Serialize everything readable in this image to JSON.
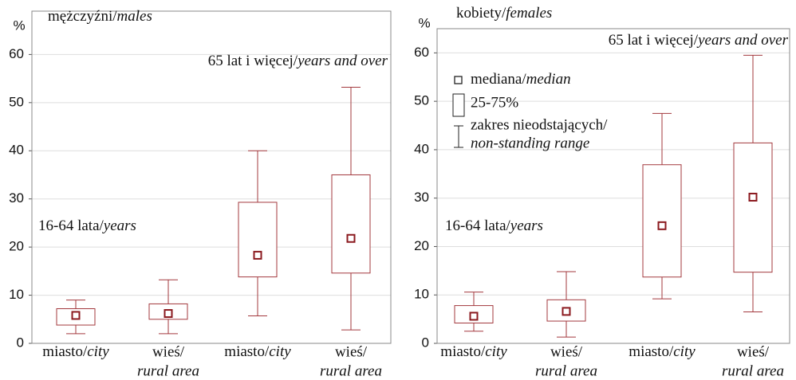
{
  "chart_data": [
    {
      "type": "box",
      "title": [
        "mężczyźni/",
        "males"
      ],
      "ylabel": "%",
      "categories": [
        [
          "miasto/",
          "city"
        ],
        [
          "wieś/",
          "rural area"
        ],
        [
          "miasto/",
          "city"
        ],
        [
          "wieś/",
          "rural area"
        ]
      ],
      "stats": [
        {
          "low": 2,
          "q1": 3.8,
          "median": 5.8,
          "q3": 7.2,
          "high": 9
        },
        {
          "low": 2,
          "q1": 5,
          "median": 6.2,
          "q3": 8.2,
          "high": 13.2
        },
        {
          "low": 5.7,
          "q1": 13.8,
          "median": 18.3,
          "q3": 29.3,
          "high": 40
        },
        {
          "low": 2.8,
          "q1": 14.6,
          "median": 21.8,
          "q3": 35,
          "high": 53.2
        }
      ],
      "color": "#a3393e",
      "median_color": "#8b1a1f",
      "annotations": [
        [
          "16-64 lata/",
          "years"
        ],
        [
          "65 lat i więcej/",
          "years and over"
        ]
      ],
      "ylim": [
        0,
        69
      ],
      "yticks": [
        0,
        10,
        20,
        30,
        40,
        50,
        60
      ],
      "grid": true
    },
    {
      "type": "box",
      "title": [
        "kobiety/",
        "females"
      ],
      "ylabel": "%",
      "categories": [
        [
          "miasto/",
          "city"
        ],
        [
          "wieś/",
          "rural area"
        ],
        [
          "miasto/",
          "city"
        ],
        [
          "wieś/",
          "rural area"
        ]
      ],
      "stats": [
        {
          "low": 2.5,
          "q1": 4.2,
          "median": 5.6,
          "q3": 7.8,
          "high": 10.6
        },
        {
          "low": 1.3,
          "q1": 4.6,
          "median": 6.6,
          "q3": 9,
          "high": 14.8
        },
        {
          "low": 9.2,
          "q1": 13.7,
          "median": 24.3,
          "q3": 36.9,
          "high": 47.5
        },
        {
          "low": 6.5,
          "q1": 14.7,
          "median": 30.2,
          "q3": 41.4,
          "high": 59.5
        }
      ],
      "color": "#a3393e",
      "median_color": "#8b1a1f",
      "annotations": [
        [
          "16-64 lata/",
          "years"
        ],
        [
          "65 lat i więcej/",
          "years and over"
        ]
      ],
      "legend": {
        "median": [
          "mediana/",
          "median"
        ],
        "box": "25-75%",
        "range": [
          "zakres nieodstających/",
          "non-standing range"
        ]
      },
      "ylim": [
        0,
        65
      ],
      "yticks": [
        0,
        10,
        20,
        30,
        40,
        50,
        60
      ],
      "grid": true
    }
  ]
}
